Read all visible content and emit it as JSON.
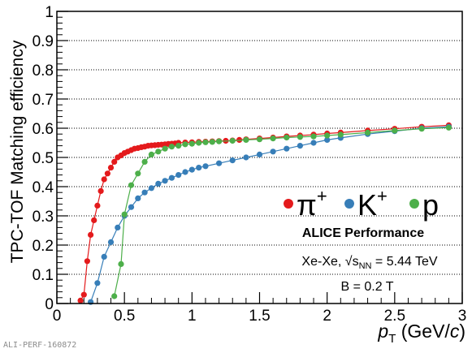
{
  "chart_data": {
    "type": "line",
    "title": "",
    "xlabel": "p_T (GeV/c)",
    "ylabel": "TPC-TOF Matching efficiency",
    "xlim": [
      0,
      3
    ],
    "ylim": [
      0,
      1
    ],
    "x_ticks": [
      "0",
      "0.5",
      "1",
      "1.5",
      "2",
      "2.5",
      "3"
    ],
    "y_ticks": [
      "0",
      "0.1",
      "0.2",
      "0.3",
      "0.4",
      "0.5",
      "0.6",
      "0.7",
      "0.8",
      "0.9",
      "1"
    ],
    "grid": {
      "horizontal": true,
      "vertical": false,
      "style": "dotted"
    },
    "legend_position": "center-right",
    "series": [
      {
        "name": "π+",
        "color": "#e41a1c",
        "x": [
          0.175,
          0.2,
          0.225,
          0.25,
          0.275,
          0.3,
          0.325,
          0.35,
          0.375,
          0.4,
          0.425,
          0.45,
          0.475,
          0.5,
          0.525,
          0.55,
          0.575,
          0.6,
          0.625,
          0.65,
          0.675,
          0.7,
          0.725,
          0.75,
          0.775,
          0.8,
          0.825,
          0.85,
          0.875,
          0.9,
          0.95,
          1.0,
          1.05,
          1.1,
          1.15,
          1.2,
          1.25,
          1.3,
          1.35,
          1.4,
          1.5,
          1.6,
          1.7,
          1.8,
          1.9,
          2.0,
          2.1,
          2.3,
          2.5,
          2.7,
          2.9
        ],
        "y": [
          0.01,
          0.03,
          0.145,
          0.235,
          0.285,
          0.335,
          0.385,
          0.425,
          0.445,
          0.465,
          0.485,
          0.5,
          0.507,
          0.515,
          0.52,
          0.525,
          0.53,
          0.532,
          0.535,
          0.537,
          0.54,
          0.541,
          0.542,
          0.543,
          0.544,
          0.545,
          0.546,
          0.547,
          0.548,
          0.55,
          0.551,
          0.552,
          0.553,
          0.554,
          0.555,
          0.556,
          0.557,
          0.558,
          0.56,
          0.562,
          0.565,
          0.568,
          0.572,
          0.575,
          0.578,
          0.582,
          0.585,
          0.592,
          0.598,
          0.605,
          0.61
        ]
      },
      {
        "name": "K+",
        "color": "#377eb8",
        "x": [
          0.25,
          0.3,
          0.35,
          0.4,
          0.45,
          0.5,
          0.55,
          0.6,
          0.65,
          0.7,
          0.75,
          0.8,
          0.85,
          0.9,
          0.95,
          1.0,
          1.05,
          1.1,
          1.2,
          1.3,
          1.4,
          1.5,
          1.6,
          1.7,
          1.8,
          1.9,
          2.0,
          2.1,
          2.3,
          2.5,
          2.7,
          2.9
        ],
        "y": [
          0.005,
          0.07,
          0.16,
          0.21,
          0.26,
          0.3,
          0.33,
          0.36,
          0.38,
          0.395,
          0.41,
          0.42,
          0.43,
          0.44,
          0.45,
          0.458,
          0.465,
          0.47,
          0.48,
          0.49,
          0.5,
          0.51,
          0.52,
          0.53,
          0.54,
          0.55,
          0.56,
          0.567,
          0.58,
          0.59,
          0.6,
          0.605
        ]
      },
      {
        "name": "p",
        "color": "#4daf4a",
        "x": [
          0.425,
          0.475,
          0.5,
          0.55,
          0.6,
          0.65,
          0.7,
          0.75,
          0.8,
          0.85,
          0.9,
          0.95,
          1.0,
          1.05,
          1.1,
          1.15,
          1.2,
          1.3,
          1.4,
          1.5,
          1.6,
          1.7,
          1.8,
          1.9,
          2.0,
          2.1,
          2.3,
          2.5,
          2.7,
          2.9
        ],
        "y": [
          0.025,
          0.135,
          0.305,
          0.405,
          0.445,
          0.485,
          0.51,
          0.52,
          0.53,
          0.537,
          0.54,
          0.545,
          0.547,
          0.55,
          0.552,
          0.553,
          0.555,
          0.557,
          0.56,
          0.562,
          0.565,
          0.568,
          0.57,
          0.572,
          0.575,
          0.578,
          0.585,
          0.592,
          0.598,
          0.602
        ]
      }
    ],
    "annotations": {
      "performance": "ALICE Performance",
      "system": "Xe-Xe, √s",
      "system_subscript": "NN",
      "energy": " = 5.44 TeV",
      "field": "B = 0.2 T"
    },
    "legend_labels": [
      {
        "base": "π",
        "sup": "+"
      },
      {
        "base": "K",
        "sup": "+"
      },
      {
        "base": "p",
        "sup": ""
      }
    ],
    "axis_title_parts": {
      "x_main": "p",
      "x_sub": "T",
      "x_units_prefix": " (GeV/",
      "x_units_var": "c",
      "x_units_suffix": ")"
    }
  },
  "figure_id": "ALI-PERF-160872"
}
